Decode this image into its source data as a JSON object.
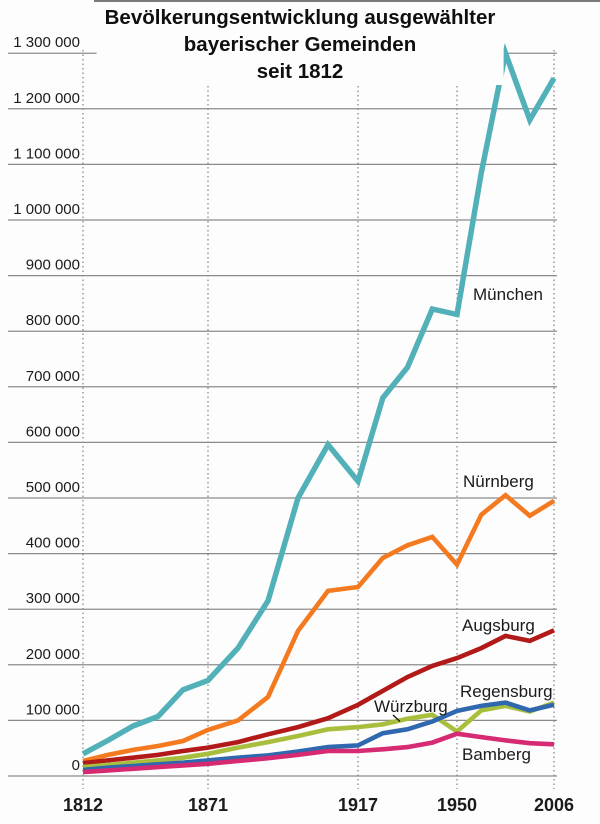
{
  "title": {
    "line1": "Bevölkerungsentwicklung ausgewählter",
    "line2": "bayerischer Gemeinden",
    "line3": "seit 1812"
  },
  "chart_data": {
    "type": "line",
    "title": "Bevölkerungsentwicklung ausgewählter bayerischer Gemeinden seit 1812",
    "xlabel": "",
    "ylabel": "",
    "ylim": [
      0,
      1300000
    ],
    "y_tick_step": 100000,
    "grid": "horizontal solid gray lines; vertical dotted lines at labeled years",
    "legend": "direct labels next to lines",
    "x": [
      1812,
      1830,
      1840,
      1852,
      1861,
      1871,
      1880,
      1890,
      1900,
      1910,
      1917,
      1925,
      1933,
      1939,
      1950,
      1961,
      1970,
      1987,
      2006
    ],
    "x_axis_tick_labels": [
      "1812",
      "1871",
      "1917",
      "1950",
      "2006"
    ],
    "y_axis_tick_labels": [
      "0",
      "100 000",
      "200 000",
      "300 000",
      "400 000",
      "500 000",
      "600 000",
      "700 000",
      "800 000",
      "900 000",
      "1 000 000",
      "1 100 000",
      "1 200 000",
      "1 300 000"
    ],
    "series": [
      {
        "name": "München",
        "color": "#52b1b8",
        "values": [
          40000,
          64000,
          90000,
          107000,
          155000,
          172000,
          230000,
          315000,
          500000,
          596000,
          530000,
          680000,
          735000,
          840000,
          830000,
          1085000,
          1300000,
          1180000,
          1255000
        ]
      },
      {
        "name": "Nürnberg",
        "color": "#f47a20",
        "values": [
          27000,
          38000,
          47000,
          54000,
          63000,
          83000,
          100000,
          142000,
          261000,
          333000,
          340000,
          392000,
          415000,
          430000,
          380000,
          470000,
          505000,
          468000,
          495000
        ]
      },
      {
        "name": "Augsburg",
        "color": "#b11a18",
        "values": [
          23000,
          28000,
          33000,
          38000,
          45000,
          51000,
          61000,
          75000,
          88000,
          104000,
          128000,
          153000,
          178000,
          198000,
          212000,
          230000,
          252000,
          243000,
          262000
        ]
      },
      {
        "name": "Regensburg",
        "color": "#2f68ae",
        "values": [
          11000,
          15000,
          18000,
          21000,
          24000,
          28000,
          33000,
          37000,
          44000,
          52000,
          55000,
          77000,
          84000,
          98000,
          117000,
          126000,
          132000,
          118000,
          128000
        ]
      },
      {
        "name": "Würzburg",
        "color": "#a8bf3d",
        "values": [
          16000,
          20000,
          24000,
          28000,
          33000,
          40000,
          51000,
          61000,
          72000,
          84000,
          88000,
          93000,
          103000,
          110000,
          80000,
          118000,
          126000,
          116000,
          132000
        ]
      },
      {
        "name": "Bamberg",
        "color": "#d62b72",
        "values": [
          7000,
          10000,
          13000,
          16000,
          19000,
          22000,
          27000,
          32000,
          38000,
          45000,
          45000,
          48000,
          52000,
          60000,
          76000,
          70000,
          64000,
          59000,
          57000
        ]
      }
    ]
  }
}
